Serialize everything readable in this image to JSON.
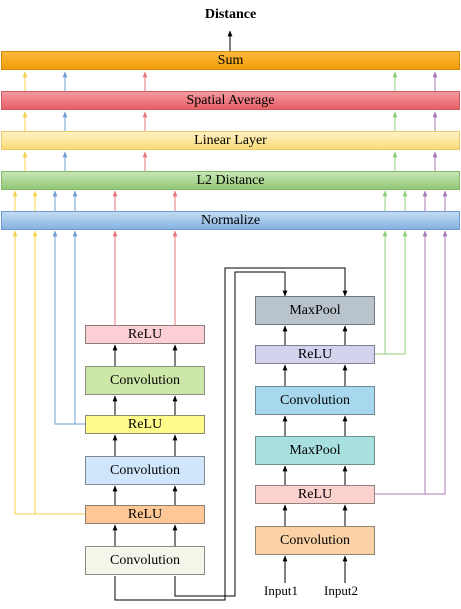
{
  "diagram": {
    "output_label": "Distance",
    "top_layers": {
      "sum": "Sum",
      "spatial_average": "Spatial Average",
      "linear_layer": "Linear Layer",
      "l2_distance": "L2 Distance",
      "normalize": "Normalize"
    },
    "left_branch": {
      "relu_top": "ReLU",
      "conv_top": "Convolution",
      "relu_mid": "ReLU",
      "conv_mid": "Convolution",
      "relu_bottom": "ReLU",
      "conv_bottom": "Convolution"
    },
    "right_branch": {
      "maxpool_top": "MaxPool",
      "relu_top": "ReLU",
      "conv": "Convolution",
      "maxpool_bottom": "MaxPool",
      "relu_bottom": "ReLU",
      "conv_bottom": "Convolution"
    },
    "inputs": [
      "Input1",
      "Input2"
    ]
  },
  "colors": {
    "sum": "#f9a825",
    "spatial_average": "#ec6f75",
    "linear_layer": "#fde89a",
    "l2_distance": "#a8d38e",
    "normalize": "#9fc4e8",
    "yellow_line": "#f5d24a",
    "blue_line": "#6f9fd0",
    "red_line": "#e8777c",
    "green_line": "#8fcf7a",
    "purple_line": "#a878b4"
  }
}
